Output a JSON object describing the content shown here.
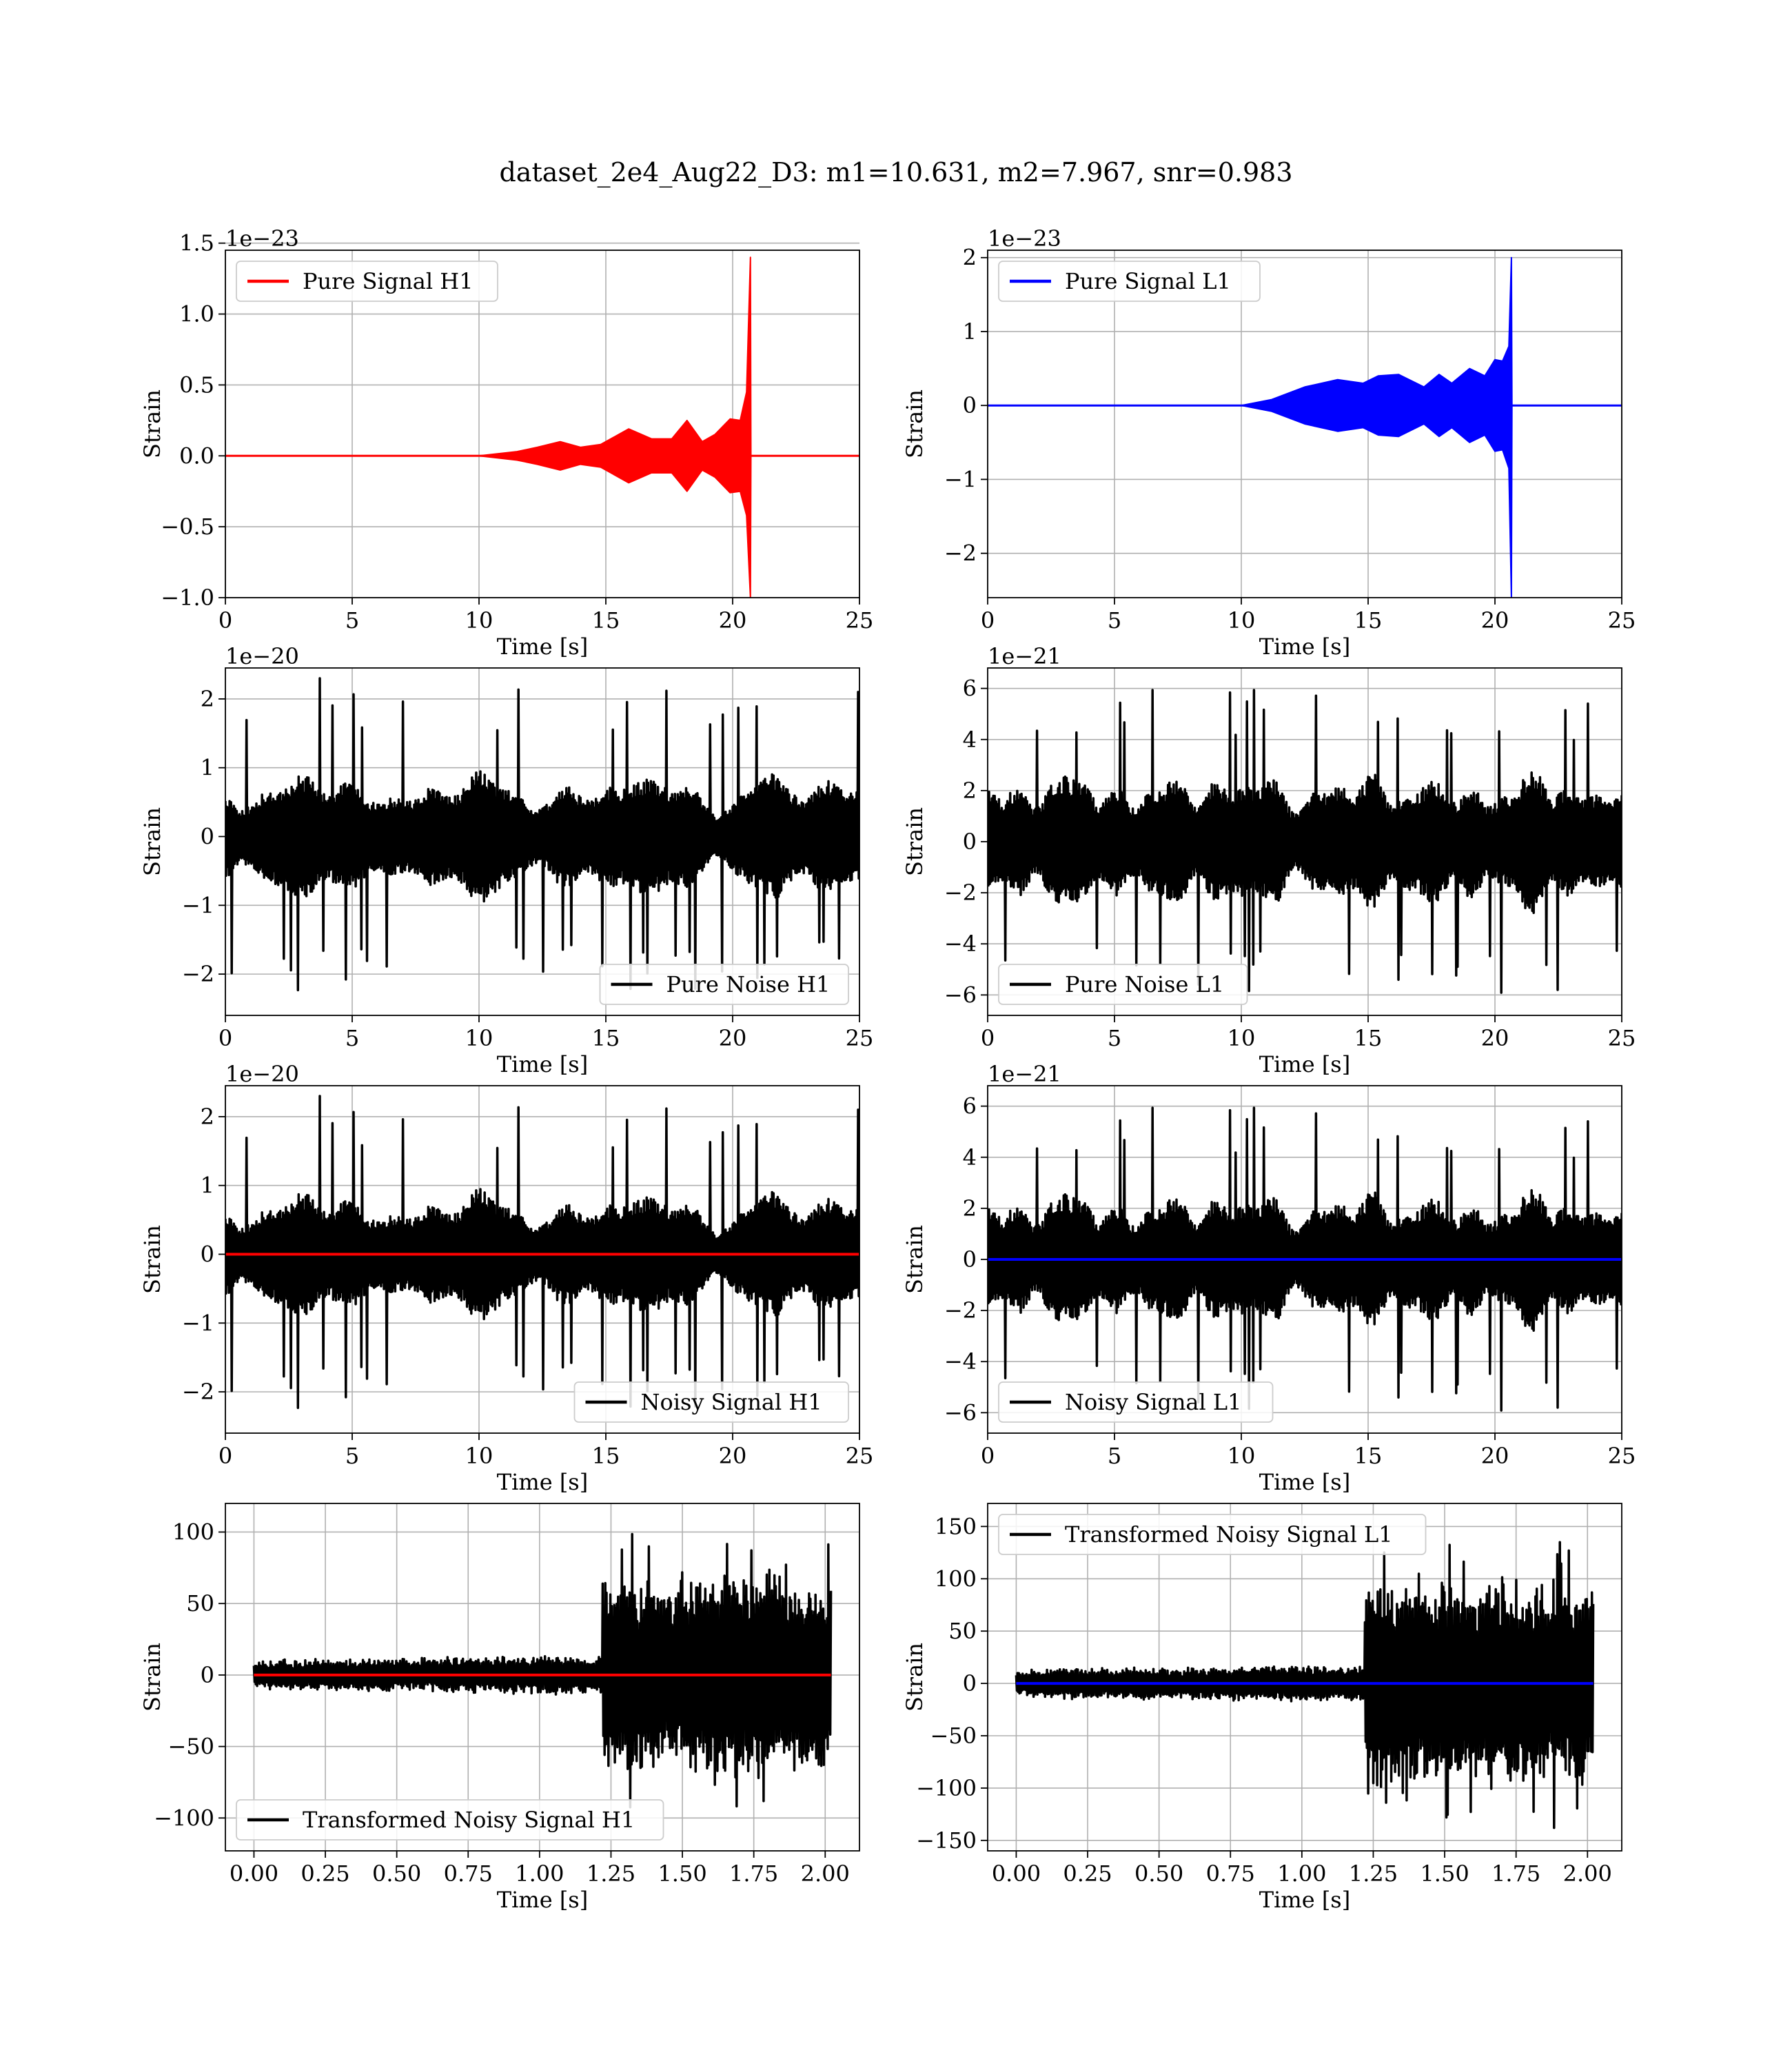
{
  "figure_title": "dataset_2e4_Aug22_D3: m1=10.631, m2=7.967, snr=0.983",
  "colors": {
    "h1": "#ff0000",
    "l1": "#0000ff",
    "noise": "#000000",
    "grid": "#b0b0b0"
  },
  "chart_data": [
    {
      "id": "pure-signal-h1",
      "type": "line",
      "xlabel": "Time [s]",
      "ylabel": "Strain",
      "offset_text": "1e−23",
      "xlim": [
        0,
        25
      ],
      "ylim": [
        -1.0,
        1.45
      ],
      "xticks": [
        0,
        5,
        10,
        15,
        20,
        25
      ],
      "xtick_labels": [
        "0",
        "5",
        "10",
        "15",
        "20",
        "25"
      ],
      "yticks": [
        -1.0,
        -0.5,
        0.0,
        0.5,
        1.0,
        1.5
      ],
      "ytick_labels": [
        "−1.0",
        "−0.5",
        "0.0",
        "0.5",
        "1.0",
        "1.5"
      ],
      "legend": {
        "position": "upper-left",
        "entries": [
          {
            "label": "Pure Signal H1",
            "color": "#ff0000"
          }
        ]
      },
      "grid": true,
      "series": [
        {
          "name": "Pure Signal H1",
          "color": "#ff0000",
          "kind": "envelope",
          "x": [
            0,
            10.0,
            11.5,
            12.3,
            13.2,
            14.0,
            14.8,
            15.9,
            16.8,
            17.6,
            18.2,
            18.8,
            19.3,
            19.9,
            20.3,
            20.55,
            20.7,
            20.72,
            25
          ],
          "upper": [
            0.0,
            0.0,
            0.03,
            0.06,
            0.1,
            0.06,
            0.08,
            0.19,
            0.12,
            0.12,
            0.25,
            0.1,
            0.15,
            0.26,
            0.25,
            0.45,
            1.4,
            0.0,
            0.0
          ],
          "lower": [
            0.0,
            0.0,
            -0.03,
            -0.06,
            -0.1,
            -0.06,
            -0.08,
            -0.19,
            -0.12,
            -0.12,
            -0.25,
            -0.1,
            -0.15,
            -0.26,
            -0.25,
            -0.42,
            -1.0,
            0.0,
            0.0
          ]
        }
      ]
    },
    {
      "id": "pure-signal-l1",
      "type": "line",
      "xlabel": "Time [s]",
      "ylabel": "Strain",
      "offset_text": "1e−23",
      "xlim": [
        0,
        25
      ],
      "ylim": [
        -2.6,
        2.1
      ],
      "xticks": [
        0,
        5,
        10,
        15,
        20,
        25
      ],
      "xtick_labels": [
        "0",
        "5",
        "10",
        "15",
        "20",
        "25"
      ],
      "yticks": [
        -2,
        -1,
        0,
        1,
        2
      ],
      "ytick_labels": [
        "−2",
        "−1",
        "0",
        "1",
        "2"
      ],
      "legend": {
        "position": "upper-left",
        "entries": [
          {
            "label": "Pure Signal L1",
            "color": "#0000ff"
          }
        ]
      },
      "grid": true,
      "series": [
        {
          "name": "Pure Signal L1",
          "color": "#0000ff",
          "kind": "envelope",
          "x": [
            0,
            10.0,
            11.2,
            12.5,
            13.8,
            14.8,
            15.4,
            16.2,
            17.2,
            17.8,
            18.3,
            19.0,
            19.6,
            20.0,
            20.3,
            20.55,
            20.65,
            20.67,
            25
          ],
          "upper": [
            0.0,
            0.0,
            0.08,
            0.25,
            0.35,
            0.3,
            0.4,
            0.42,
            0.25,
            0.42,
            0.3,
            0.5,
            0.4,
            0.62,
            0.6,
            0.8,
            2.0,
            0.0,
            0.0
          ],
          "lower": [
            0.0,
            0.0,
            -0.08,
            -0.25,
            -0.35,
            -0.3,
            -0.4,
            -0.42,
            -0.25,
            -0.42,
            -0.3,
            -0.5,
            -0.4,
            -0.62,
            -0.6,
            -0.85,
            -2.6,
            0.0,
            0.0
          ]
        }
      ]
    },
    {
      "id": "pure-noise-h1",
      "type": "line",
      "xlabel": "Time [s]",
      "ylabel": "Strain",
      "offset_text": "1e−20",
      "xlim": [
        0,
        25
      ],
      "ylim": [
        -2.6,
        2.45
      ],
      "xticks": [
        0,
        5,
        10,
        15,
        20,
        25
      ],
      "xtick_labels": [
        "0",
        "5",
        "10",
        "15",
        "20",
        "25"
      ],
      "yticks": [
        -2,
        -1,
        0,
        1,
        2
      ],
      "ytick_labels": [
        "−2",
        "−1",
        "0",
        "1",
        "2"
      ],
      "legend": {
        "position": "lower-right",
        "entries": [
          {
            "label": "Pure Noise H1",
            "color": "#000000"
          }
        ]
      },
      "grid": true,
      "series": [
        {
          "name": "Pure Noise H1",
          "color": "#000000",
          "kind": "noise",
          "seed": 11,
          "amp": 1.2,
          "peak": 2.35,
          "xstart": 0,
          "xend": 25
        }
      ]
    },
    {
      "id": "pure-noise-l1",
      "type": "line",
      "xlabel": "Time [s]",
      "ylabel": "Strain",
      "offset_text": "1e−21",
      "xlim": [
        0,
        25
      ],
      "ylim": [
        -6.8,
        6.8
      ],
      "xticks": [
        0,
        5,
        10,
        15,
        20,
        25
      ],
      "xtick_labels": [
        "0",
        "5",
        "10",
        "15",
        "20",
        "25"
      ],
      "yticks": [
        -6,
        -4,
        -2,
        0,
        2,
        4,
        6
      ],
      "ytick_labels": [
        "−6",
        "−4",
        "−2",
        "0",
        "2",
        "4",
        "6"
      ],
      "legend": {
        "position": "lower-left",
        "entries": [
          {
            "label": "Pure Noise L1",
            "color": "#000000"
          }
        ]
      },
      "grid": true,
      "series": [
        {
          "name": "Pure Noise L1",
          "color": "#000000",
          "kind": "noise",
          "seed": 23,
          "amp": 3.6,
          "peak": 6.3,
          "xstart": 0,
          "xend": 25
        }
      ]
    },
    {
      "id": "noisy-signal-h1",
      "type": "line",
      "xlabel": "Time [s]",
      "ylabel": "Strain",
      "offset_text": "1e−20",
      "xlim": [
        0,
        25
      ],
      "ylim": [
        -2.6,
        2.45
      ],
      "xticks": [
        0,
        5,
        10,
        15,
        20,
        25
      ],
      "xtick_labels": [
        "0",
        "5",
        "10",
        "15",
        "20",
        "25"
      ],
      "yticks": [
        -2,
        -1,
        0,
        1,
        2
      ],
      "ytick_labels": [
        "−2",
        "−1",
        "0",
        "1",
        "2"
      ],
      "legend": {
        "position": "lower-right",
        "entries": [
          {
            "label": "Noisy Signal H1",
            "color": "#000000"
          }
        ]
      },
      "grid": true,
      "series": [
        {
          "name": "Noisy Signal H1",
          "color": "#000000",
          "kind": "noise",
          "seed": 11,
          "amp": 1.2,
          "peak": 2.35,
          "xstart": 0,
          "xend": 25
        },
        {
          "color": "#ff0000",
          "kind": "flat",
          "x": [
            0,
            25
          ],
          "y": [
            0,
            0
          ]
        }
      ]
    },
    {
      "id": "noisy-signal-l1",
      "type": "line",
      "xlabel": "Time [s]",
      "ylabel": "Strain",
      "offset_text": "1e−21",
      "xlim": [
        0,
        25
      ],
      "ylim": [
        -6.8,
        6.8
      ],
      "xticks": [
        0,
        5,
        10,
        15,
        20,
        25
      ],
      "xtick_labels": [
        "0",
        "5",
        "10",
        "15",
        "20",
        "25"
      ],
      "yticks": [
        -6,
        -4,
        -2,
        0,
        2,
        4,
        6
      ],
      "ytick_labels": [
        "−6",
        "−4",
        "−2",
        "0",
        "2",
        "4",
        "6"
      ],
      "legend": {
        "position": "lower-left",
        "entries": [
          {
            "label": "Noisy Signal L1",
            "color": "#000000"
          }
        ]
      },
      "grid": true,
      "series": [
        {
          "name": "Noisy Signal L1",
          "color": "#000000",
          "kind": "noise",
          "seed": 23,
          "amp": 3.6,
          "peak": 6.3,
          "xstart": 0,
          "xend": 25
        },
        {
          "color": "#0000ff",
          "kind": "flat",
          "x": [
            0,
            25
          ],
          "y": [
            0,
            0
          ]
        }
      ]
    },
    {
      "id": "transformed-noisy-signal-h1",
      "type": "line",
      "xlabel": "Time [s]",
      "ylabel": "Strain",
      "offset_text": "",
      "xlim": [
        -0.1,
        2.12
      ],
      "ylim": [
        -123,
        120
      ],
      "xticks": [
        0,
        0.25,
        0.5,
        0.75,
        1.0,
        1.25,
        1.5,
        1.75,
        2.0
      ],
      "xtick_labels": [
        "0.00",
        "0.25",
        "0.50",
        "0.75",
        "1.00",
        "1.25",
        "1.50",
        "1.75",
        "2.00"
      ],
      "yticks": [
        -100,
        -50,
        0,
        50,
        100
      ],
      "ytick_labels": [
        "−100",
        "−50",
        "0",
        "50",
        "100"
      ],
      "legend": {
        "position": "lower-left",
        "entries": [
          {
            "label": "Transformed Noisy Signal H1",
            "color": "#000000"
          }
        ]
      },
      "grid": true,
      "series": [
        {
          "name": "Transformed Noisy Signal H1",
          "color": "#000000",
          "kind": "burst",
          "seed": 37,
          "xstart": 0,
          "xend": 2.02,
          "t_burst": 1.22,
          "low_amp": 9,
          "high_amp": 62,
          "peak": 108
        },
        {
          "color": "#ff0000",
          "kind": "flat",
          "x": [
            0,
            2.02
          ],
          "y": [
            0,
            0
          ]
        }
      ]
    },
    {
      "id": "transformed-noisy-signal-l1",
      "type": "line",
      "xlabel": "Time [s]",
      "ylabel": "Strain",
      "offset_text": "",
      "xlim": [
        -0.1,
        2.12
      ],
      "ylim": [
        -160,
        172
      ],
      "xticks": [
        0,
        0.25,
        0.5,
        0.75,
        1.0,
        1.25,
        1.5,
        1.75,
        2.0
      ],
      "xtick_labels": [
        "0.00",
        "0.25",
        "0.50",
        "0.75",
        "1.00",
        "1.25",
        "1.50",
        "1.75",
        "2.00"
      ],
      "yticks": [
        -150,
        -100,
        -50,
        0,
        50,
        100,
        150
      ],
      "ytick_labels": [
        "−150",
        "−100",
        "−50",
        "0",
        "50",
        "100",
        "150"
      ],
      "legend": {
        "position": "upper-left",
        "entries": [
          {
            "label": "Transformed Noisy Signal L1",
            "color": "#000000"
          }
        ]
      },
      "grid": true,
      "series": [
        {
          "name": "Transformed Noisy Signal L1",
          "color": "#000000",
          "kind": "burst",
          "seed": 53,
          "xstart": 0,
          "xend": 2.02,
          "t_burst": 1.22,
          "low_amp": 12,
          "high_amp": 85,
          "peak": 160
        },
        {
          "color": "#0000ff",
          "kind": "flat",
          "x": [
            0,
            2.02
          ],
          "y": [
            0,
            0
          ]
        }
      ]
    }
  ]
}
